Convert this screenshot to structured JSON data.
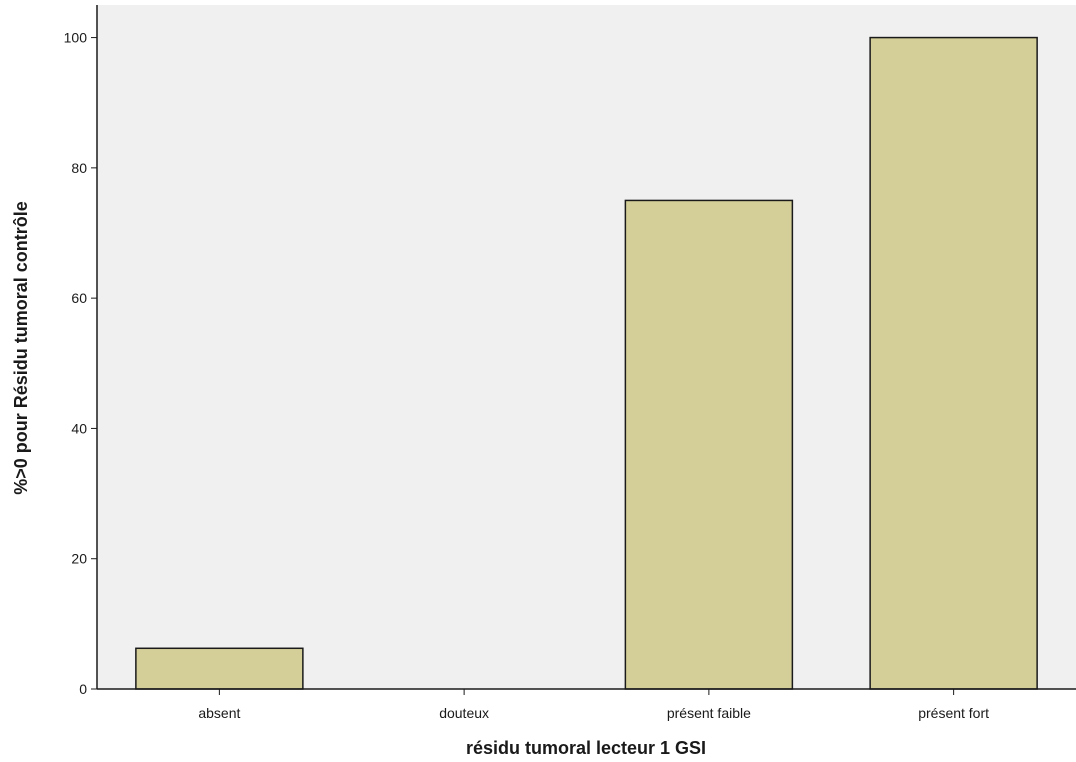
{
  "chart_data": {
    "type": "bar",
    "title": "",
    "xlabel": "résidu tumoral lecteur 1 GSI",
    "ylabel": "%>0 pour Résidu tumoral contrôle",
    "categories": [
      "absent",
      "douteux",
      "présent faible",
      "présent fort"
    ],
    "values": [
      6.25,
      0,
      75,
      100
    ],
    "ylim": [
      0,
      105
    ],
    "yticks": [
      0,
      20,
      40,
      60,
      80,
      100
    ],
    "grid": false,
    "legend": "none",
    "colors": {
      "bar_fill": "#d4cf98",
      "bar_stroke": "#1a1a1a",
      "plot_background": "#f0f0f0",
      "axis": "#1a1a1a"
    }
  }
}
